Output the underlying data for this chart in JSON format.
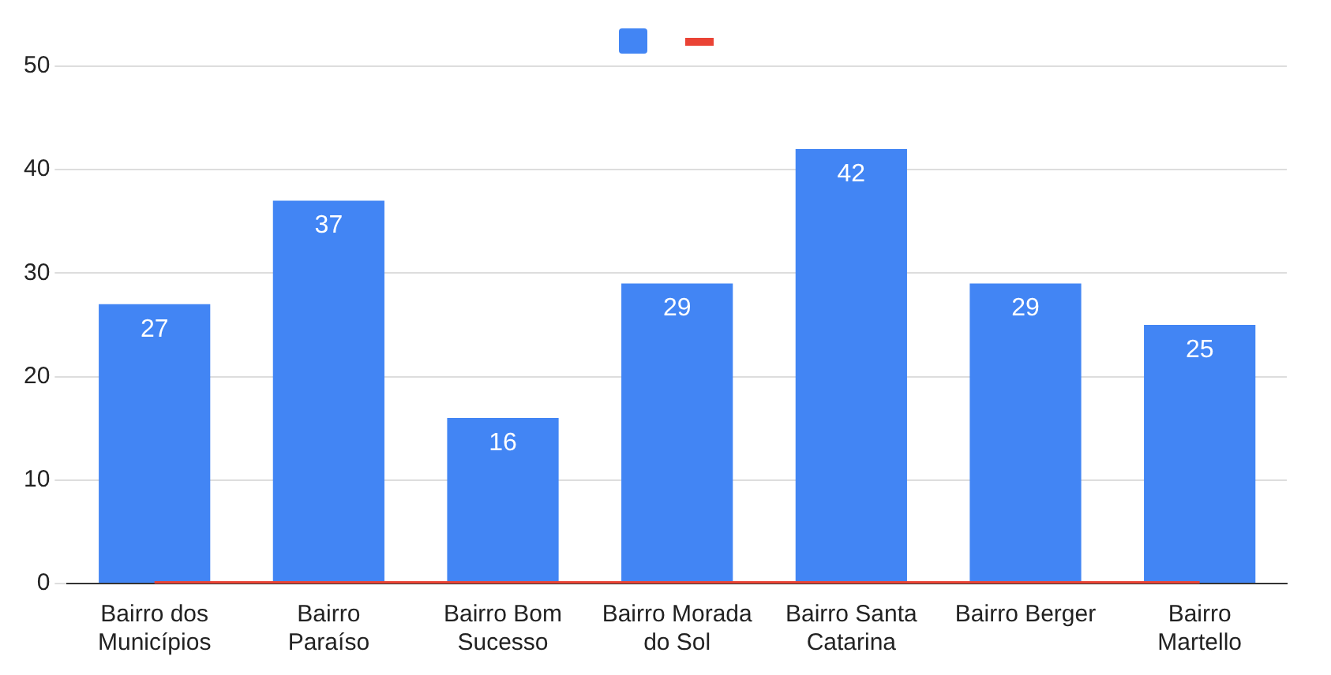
{
  "chart_data": {
    "type": "bar",
    "categories": [
      "Bairro dos Municípios",
      "Bairro Paraíso",
      "Bairro Bom Sucesso",
      "Bairro Morada do Sol",
      "Bairro Santa Catarina",
      "Bairro Berger",
      "Bairro Martello"
    ],
    "series": [
      {
        "color": "#4285f4",
        "values": [
          27,
          37,
          16,
          29,
          42,
          29,
          25
        ],
        "value_labels": [
          "27",
          "37",
          "16",
          "29",
          "42",
          "29",
          "25"
        ]
      },
      {
        "type": "line",
        "color": "#ea4335",
        "values": [
          0,
          0,
          0,
          0,
          0,
          0,
          0
        ]
      }
    ],
    "ylim": [
      0,
      50
    ],
    "yticks": [
      0,
      10,
      20,
      30,
      40,
      50
    ],
    "grid": "y",
    "marker": "none"
  }
}
